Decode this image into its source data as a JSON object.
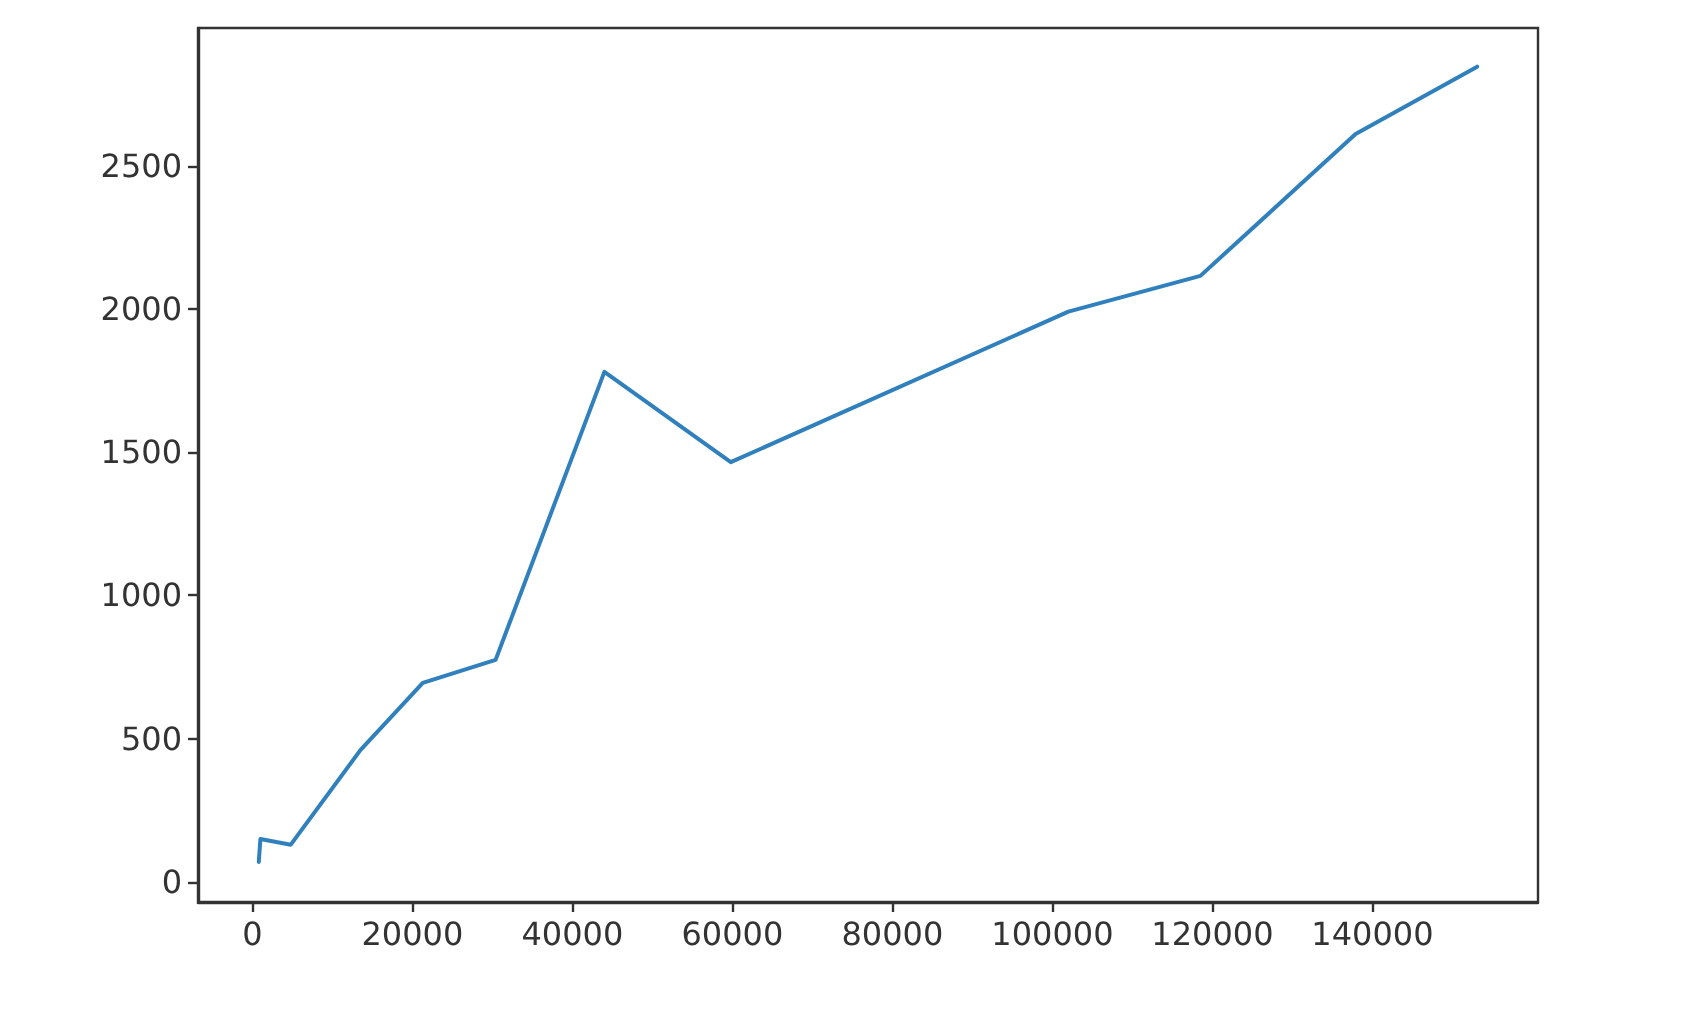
{
  "chart_data": {
    "type": "line",
    "x": [
      800,
      1000,
      4800,
      13500,
      21300,
      30400,
      44000,
      59800,
      102000,
      118500,
      137900,
      153100
    ],
    "series": [
      {
        "color": "#3080bd",
        "values": [
          70,
          150,
          130,
          460,
          695,
          775,
          1780,
          1465,
          1990,
          2115,
          2610,
          2845
        ]
      }
    ],
    "xlim": [
      -6800,
      160700
    ],
    "ylim": [
      -70,
      2980
    ],
    "xticks": [
      0,
      20000,
      40000,
      60000,
      80000,
      100000,
      120000,
      140000
    ],
    "yticks": [
      0,
      500,
      1000,
      1500,
      2000,
      2500
    ],
    "marker": "none"
  }
}
